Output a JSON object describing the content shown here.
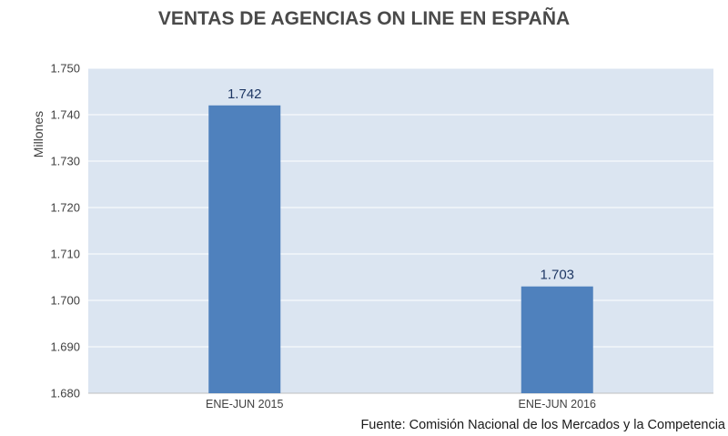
{
  "chart_data": {
    "type": "bar",
    "title": "VENTAS DE AGENCIAS ON LINE EN ESPAÑA",
    "ylabel": "Millones",
    "xlabel": "",
    "categories": [
      "ENE-JUN 2015",
      "ENE-JUN 2016"
    ],
    "values": [
      1742,
      1703
    ],
    "value_labels": [
      "1.742",
      "1.703"
    ],
    "ylim": [
      1680,
      1750
    ],
    "yticks": [
      1680,
      1690,
      1700,
      1710,
      1720,
      1730,
      1740,
      1750
    ],
    "ytick_labels": [
      "1.680",
      "1.690",
      "1.700",
      "1.710",
      "1.720",
      "1.730",
      "1.740",
      "1.750"
    ],
    "grid": true,
    "legend": "none",
    "colors": {
      "bar": "#4f81bd",
      "plot_background": "#dbe5f1",
      "gridline": "#ffffff",
      "value_label": "#1f3864"
    }
  },
  "footer": {
    "source": "Fuente: Comisión Nacional de los Mercados y la Competencia"
  }
}
